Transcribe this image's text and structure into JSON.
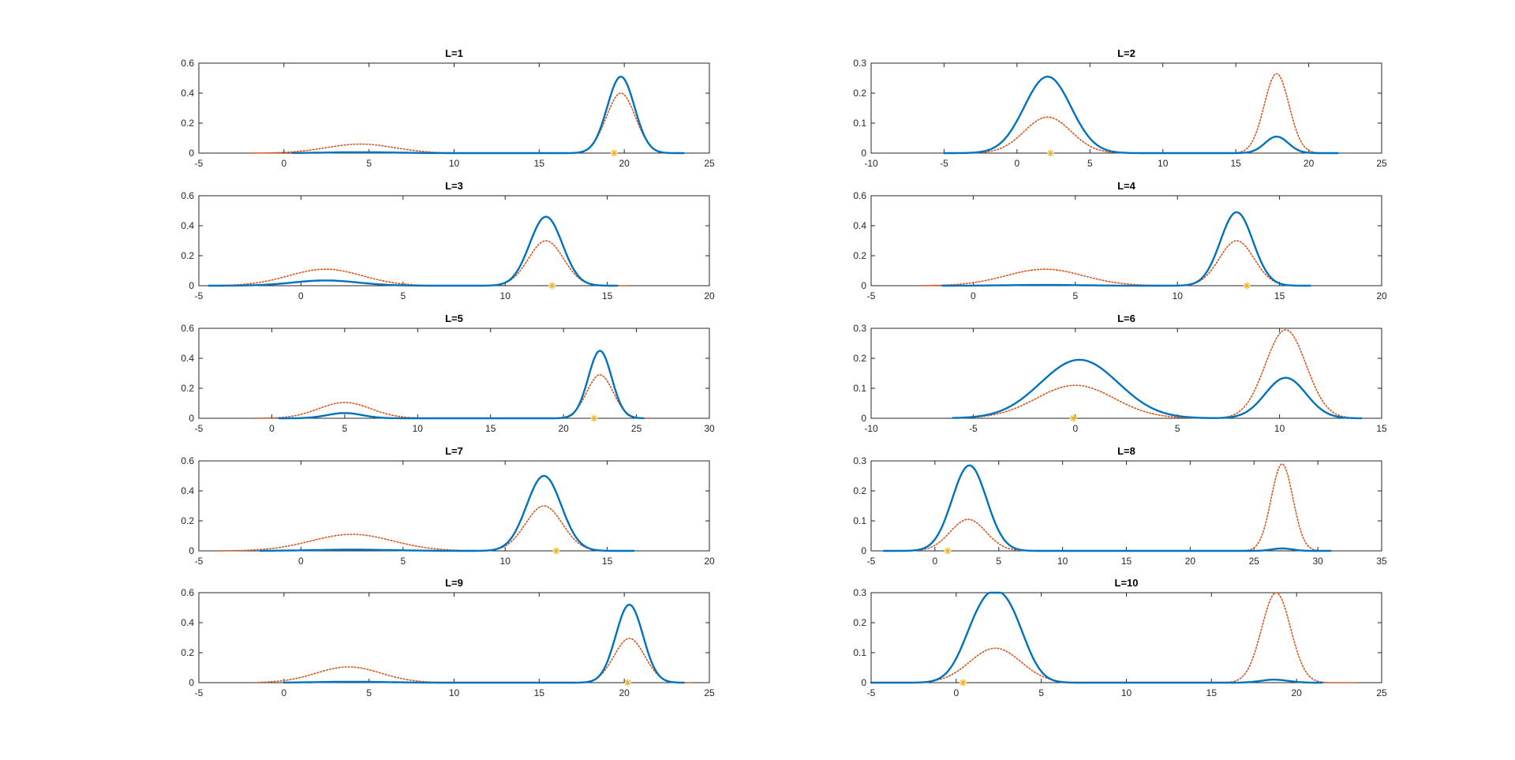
{
  "figure": {
    "background": "#ffffff",
    "colors": {
      "estimate": "#0072BD",
      "reference": "#D95319",
      "marker": "#EDB120",
      "axes": "#262626"
    },
    "line_styles": {
      "estimate": "solid",
      "reference": "dotted",
      "marker": "star"
    }
  },
  "chart_data": [
    {
      "type": "line",
      "title": "L=1",
      "xlim": [
        -5,
        25
      ],
      "ylim": [
        0,
        0.6
      ],
      "xticks": [
        -5,
        0,
        5,
        10,
        15,
        20,
        25
      ],
      "yticks": [
        0,
        0.2,
        0.4,
        0.6
      ],
      "xtick_labels": [
        "-5",
        "0",
        "5",
        "10",
        "15",
        "20",
        "25"
      ],
      "ytick_labels": [
        "0",
        "0.2",
        "0.4",
        "0.6"
      ],
      "series": [
        {
          "style": "solid",
          "range": [
            0.5,
            23.5
          ],
          "components": [
            {
              "mu": 4.5,
              "sigma": 2.0,
              "amp": 0.006
            },
            {
              "mu": 19.8,
              "sigma": 0.8,
              "amp": 0.51
            }
          ]
        },
        {
          "style": "dotted",
          "range": [
            -2,
            23.5
          ],
          "components": [
            {
              "mu": 4.5,
              "sigma": 2.0,
              "amp": 0.06
            },
            {
              "mu": 19.8,
              "sigma": 0.85,
              "amp": 0.4
            }
          ]
        }
      ],
      "marker": {
        "x": 19.4,
        "y": 0
      }
    },
    {
      "type": "line",
      "title": "L=2",
      "xlim": [
        -10,
        25
      ],
      "ylim": [
        0,
        0.3
      ],
      "xticks": [
        -10,
        -5,
        0,
        5,
        10,
        15,
        20,
        25
      ],
      "yticks": [
        0,
        0.1,
        0.2,
        0.3
      ],
      "xtick_labels": [
        "-10",
        "-5",
        "0",
        "5",
        "10",
        "15",
        "20",
        "25"
      ],
      "ytick_labels": [
        "0",
        "0.1",
        "0.2",
        "0.3"
      ],
      "series": [
        {
          "style": "solid",
          "range": [
            -5,
            22
          ],
          "components": [
            {
              "mu": 2.1,
              "sigma": 1.6,
              "amp": 0.255
            },
            {
              "mu": 17.8,
              "sigma": 0.8,
              "amp": 0.055
            }
          ]
        },
        {
          "style": "dotted",
          "range": [
            -5,
            22
          ],
          "components": [
            {
              "mu": 2.1,
              "sigma": 1.6,
              "amp": 0.12
            },
            {
              "mu": 17.8,
              "sigma": 0.85,
              "amp": 0.265
            }
          ]
        }
      ],
      "marker": {
        "x": 2.3,
        "y": 0
      }
    },
    {
      "type": "line",
      "title": "L=3",
      "xlim": [
        -5,
        20
      ],
      "ylim": [
        0,
        0.6
      ],
      "xticks": [
        -5,
        0,
        5,
        10,
        15,
        20
      ],
      "yticks": [
        0,
        0.2,
        0.4,
        0.6
      ],
      "xtick_labels": [
        "-5",
        "0",
        "5",
        "10",
        "15",
        "20"
      ],
      "ytick_labels": [
        "0",
        "0.2",
        "0.4",
        "0.6"
      ],
      "series": [
        {
          "style": "solid",
          "range": [
            -4.5,
            15.5
          ],
          "components": [
            {
              "mu": 1.2,
              "sigma": 1.6,
              "amp": 0.035
            },
            {
              "mu": 12.0,
              "sigma": 0.8,
              "amp": 0.46
            }
          ]
        },
        {
          "style": "dotted",
          "range": [
            -4.5,
            16
          ],
          "components": [
            {
              "mu": 1.2,
              "sigma": 1.8,
              "amp": 0.11
            },
            {
              "mu": 12.0,
              "sigma": 0.85,
              "amp": 0.3
            }
          ]
        }
      ],
      "marker": {
        "x": 12.3,
        "y": 0
      }
    },
    {
      "type": "line",
      "title": "L=4",
      "xlim": [
        -5,
        20
      ],
      "ylim": [
        0,
        0.6
      ],
      "xticks": [
        -5,
        0,
        5,
        10,
        15,
        20
      ],
      "yticks": [
        0,
        0.2,
        0.4,
        0.6
      ],
      "xtick_labels": [
        "-5",
        "0",
        "5",
        "10",
        "15",
        "20"
      ],
      "ytick_labels": [
        "0",
        "0.2",
        "0.4",
        "0.6"
      ],
      "series": [
        {
          "style": "solid",
          "range": [
            -1.5,
            16.5
          ],
          "components": [
            {
              "mu": 3.5,
              "sigma": 1.8,
              "amp": 0.005
            },
            {
              "mu": 12.9,
              "sigma": 0.8,
              "amp": 0.49
            }
          ]
        },
        {
          "style": "dotted",
          "range": [
            -2.5,
            16.5
          ],
          "components": [
            {
              "mu": 3.5,
              "sigma": 1.9,
              "amp": 0.11
            },
            {
              "mu": 12.9,
              "sigma": 0.85,
              "amp": 0.3
            }
          ]
        }
      ],
      "marker": {
        "x": 13.4,
        "y": 0
      }
    },
    {
      "type": "line",
      "title": "L=5",
      "xlim": [
        -5,
        30
      ],
      "ylim": [
        0,
        0.6
      ],
      "xticks": [
        -5,
        0,
        5,
        10,
        15,
        20,
        25,
        30
      ],
      "yticks": [
        0,
        0.2,
        0.4,
        0.6
      ],
      "xtick_labels": [
        "-5",
        "0",
        "5",
        "10",
        "15",
        "20",
        "25",
        "30"
      ],
      "ytick_labels": [
        "0",
        "0.2",
        "0.4",
        "0.6"
      ],
      "series": [
        {
          "style": "solid",
          "range": [
            0.5,
            25.5
          ],
          "components": [
            {
              "mu": 5.0,
              "sigma": 1.2,
              "amp": 0.035
            },
            {
              "mu": 22.5,
              "sigma": 0.8,
              "amp": 0.45
            }
          ]
        },
        {
          "style": "dotted",
          "range": [
            -1,
            26
          ],
          "components": [
            {
              "mu": 5.0,
              "sigma": 1.8,
              "amp": 0.105
            },
            {
              "mu": 22.5,
              "sigma": 0.9,
              "amp": 0.29
            }
          ]
        }
      ],
      "marker": {
        "x": 22.1,
        "y": 0
      }
    },
    {
      "type": "line",
      "title": "L=6",
      "xlim": [
        -10,
        15
      ],
      "ylim": [
        0,
        0.3
      ],
      "xticks": [
        -10,
        -5,
        0,
        5,
        10,
        15
      ],
      "yticks": [
        0,
        0.1,
        0.2,
        0.3
      ],
      "xtick_labels": [
        "-10",
        "-5",
        "0",
        "5",
        "10",
        "15"
      ],
      "ytick_labels": [
        "0",
        "0.1",
        "0.2",
        "0.3"
      ],
      "series": [
        {
          "style": "solid",
          "range": [
            -6,
            14
          ],
          "components": [
            {
              "mu": 0.2,
              "sigma": 1.9,
              "amp": 0.195
            },
            {
              "mu": 10.3,
              "sigma": 1.0,
              "amp": 0.135
            }
          ]
        },
        {
          "style": "dotted",
          "range": [
            -6,
            14
          ],
          "components": [
            {
              "mu": 0.0,
              "sigma": 1.9,
              "amp": 0.11
            },
            {
              "mu": 10.3,
              "sigma": 1.0,
              "amp": 0.295
            }
          ]
        }
      ],
      "marker": {
        "x": -0.1,
        "y": 0
      }
    },
    {
      "type": "line",
      "title": "L=7",
      "xlim": [
        -5,
        20
      ],
      "ylim": [
        0,
        0.6
      ],
      "xticks": [
        -5,
        0,
        5,
        10,
        15,
        20
      ],
      "yticks": [
        0,
        0.2,
        0.4,
        0.6
      ],
      "xtick_labels": [
        "-5",
        "0",
        "5",
        "10",
        "15",
        "20"
      ],
      "ytick_labels": [
        "0",
        "0.2",
        "0.4",
        "0.6"
      ],
      "series": [
        {
          "style": "solid",
          "range": [
            -2,
            16.3
          ],
          "components": [
            {
              "mu": 2.5,
              "sigma": 2.0,
              "amp": 0.008
            },
            {
              "mu": 11.9,
              "sigma": 0.85,
              "amp": 0.5
            }
          ]
        },
        {
          "style": "dotted",
          "range": [
            -4,
            16.3
          ],
          "components": [
            {
              "mu": 2.5,
              "sigma": 2.0,
              "amp": 0.11
            },
            {
              "mu": 11.9,
              "sigma": 0.9,
              "amp": 0.3
            }
          ]
        }
      ],
      "marker": {
        "x": 12.5,
        "y": 0
      }
    },
    {
      "type": "line",
      "title": "L=8",
      "xlim": [
        -5,
        35
      ],
      "ylim": [
        0,
        0.3
      ],
      "xticks": [
        -5,
        0,
        5,
        10,
        15,
        20,
        25,
        30,
        35
      ],
      "yticks": [
        0,
        0.1,
        0.2,
        0.3
      ],
      "xtick_labels": [
        "-5",
        "0",
        "5",
        "10",
        "15",
        "20",
        "25",
        "30",
        "35"
      ],
      "ytick_labels": [
        "0",
        "0.1",
        "0.2",
        "0.3"
      ],
      "series": [
        {
          "style": "solid",
          "range": [
            -4,
            31
          ],
          "components": [
            {
              "mu": 2.7,
              "sigma": 1.35,
              "amp": 0.285
            },
            {
              "mu": 27.2,
              "sigma": 0.8,
              "amp": 0.008
            }
          ]
        },
        {
          "style": "dotted",
          "range": [
            -4,
            31
          ],
          "components": [
            {
              "mu": 2.6,
              "sigma": 1.4,
              "amp": 0.105
            },
            {
              "mu": 27.2,
              "sigma": 0.85,
              "amp": 0.29
            }
          ]
        }
      ],
      "marker": {
        "x": 1.0,
        "y": 0
      }
    },
    {
      "type": "line",
      "title": "L=9",
      "xlim": [
        -5,
        25
      ],
      "ylim": [
        0,
        0.6
      ],
      "xticks": [
        -5,
        0,
        5,
        10,
        15,
        20,
        25
      ],
      "yticks": [
        0,
        0.2,
        0.4,
        0.6
      ],
      "xtick_labels": [
        "-5",
        "0",
        "5",
        "10",
        "15",
        "20",
        "25"
      ],
      "ytick_labels": [
        "0",
        "0.2",
        "0.4",
        "0.6"
      ],
      "series": [
        {
          "style": "solid",
          "range": [
            0,
            23.5
          ],
          "components": [
            {
              "mu": 4.0,
              "sigma": 2.0,
              "amp": 0.006
            },
            {
              "mu": 20.3,
              "sigma": 0.8,
              "amp": 0.52
            }
          ]
        },
        {
          "style": "dotted",
          "range": [
            -1.5,
            24
          ],
          "components": [
            {
              "mu": 3.8,
              "sigma": 1.9,
              "amp": 0.105
            },
            {
              "mu": 20.3,
              "sigma": 0.9,
              "amp": 0.295
            }
          ]
        }
      ],
      "marker": {
        "x": 20.2,
        "y": 0
      }
    },
    {
      "type": "line",
      "title": "L=10",
      "xlim": [
        -5,
        25
      ],
      "ylim": [
        0,
        0.3
      ],
      "xticks": [
        -5,
        0,
        5,
        10,
        15,
        20,
        25
      ],
      "yticks": [
        0,
        0.1,
        0.2,
        0.3
      ],
      "xtick_labels": [
        "-5",
        "0",
        "5",
        "10",
        "15",
        "20",
        "25"
      ],
      "ytick_labels": [
        "0",
        "0.1",
        "0.2",
        "0.3"
      ],
      "series": [
        {
          "style": "solid",
          "range": [
            -5,
            21.5
          ],
          "components": [
            {
              "mu": 1.6,
              "sigma": 1.1,
              "amp": 0.23
            },
            {
              "mu": 3.2,
              "sigma": 1.0,
              "amp": 0.18
            },
            {
              "mu": 18.7,
              "sigma": 0.8,
              "amp": 0.01
            }
          ]
        },
        {
          "style": "dotted",
          "range": [
            -5,
            23.5
          ],
          "components": [
            {
              "mu": 2.3,
              "sigma": 1.5,
              "amp": 0.115
            },
            {
              "mu": 18.8,
              "sigma": 0.85,
              "amp": 0.3
            }
          ]
        }
      ],
      "marker": {
        "x": 0.4,
        "y": 0
      }
    }
  ]
}
